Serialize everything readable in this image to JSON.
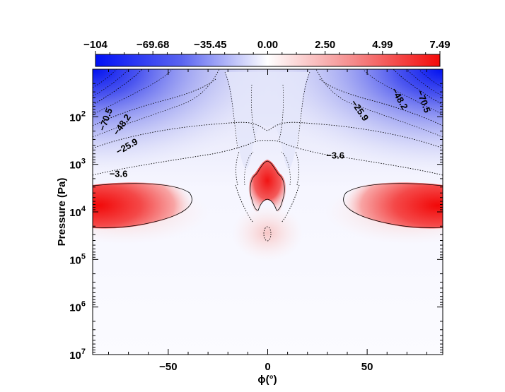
{
  "chart_data": {
    "type": "heatmap",
    "title": "",
    "xlabel": "ϕ(°)",
    "ylabel": "Pressure (Pa)",
    "xlim": [
      -88,
      88
    ],
    "ylim_pressure_pa": [
      10.0,
      10000000.0
    ],
    "y_scale": "log",
    "y_inverted": true,
    "x_ticks": [
      {
        "value": -50,
        "label": "−50"
      },
      {
        "value": 0,
        "label": "0"
      },
      {
        "value": 50,
        "label": "50"
      }
    ],
    "y_ticks": [
      {
        "value": 100,
        "base": "10",
        "exp": "2"
      },
      {
        "value": 1000,
        "base": "10",
        "exp": "3"
      },
      {
        "value": 10000,
        "base": "10",
        "exp": "4"
      },
      {
        "value": 100000,
        "base": "10",
        "exp": "5"
      },
      {
        "value": 1000000,
        "base": "10",
        "exp": "6"
      },
      {
        "value": 10000000,
        "base": "10",
        "exp": "7"
      }
    ],
    "colorbar": {
      "position": "top",
      "min": -104,
      "max": 7.49,
      "tick_labels": [
        "−104",
        "−69.68",
        "−35.45",
        "0.00",
        "2.50",
        "4.99",
        "7.49"
      ],
      "tick_values": [
        -104,
        -69.68,
        -35.45,
        0,
        2.5,
        4.99,
        7.49
      ],
      "colors": {
        "negative": "#0a14f0",
        "zero": "#ffffff",
        "positive": "#f00a0a"
      }
    },
    "contour_labels": [
      {
        "label": "−70.5",
        "phi": -80,
        "p": 120
      },
      {
        "label": "−48.2",
        "phi": -72,
        "p": 160
      },
      {
        "label": "−25.9",
        "phi": -70,
        "p": 480
      },
      {
        "label": "−3.6",
        "phi": -75,
        "p": 1850
      },
      {
        "label": "−25.9",
        "phi": 45,
        "p": 80
      },
      {
        "label": "−48.2",
        "phi": 65,
        "p": 45
      },
      {
        "label": "−70.5",
        "phi": 77,
        "p": 50
      },
      {
        "label": "−3.6",
        "phi": 34,
        "p": 750
      }
    ],
    "regions": [
      {
        "kind": "positive",
        "phi_range": [
          -88,
          -40
        ],
        "p_range": [
          3000,
          25000
        ],
        "peak": 7.49
      },
      {
        "kind": "positive",
        "phi_range": [
          -8,
          8
        ],
        "p_range": [
          900,
          25000
        ],
        "peak": 7.0
      },
      {
        "kind": "positive",
        "phi_range": [
          40,
          88
        ],
        "p_range": [
          3000,
          25000
        ],
        "peak": 7.49
      },
      {
        "kind": "negative",
        "phi_range": [
          -88,
          88
        ],
        "p_range": [
          10,
          3000
        ],
        "peak": -104
      }
    ],
    "grid": false,
    "legend": "none"
  }
}
